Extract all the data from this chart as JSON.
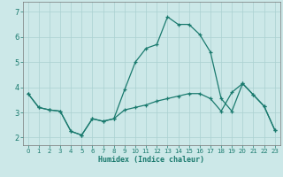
{
  "xlabel": "Humidex (Indice chaleur)",
  "xlim": [
    -0.5,
    23.5
  ],
  "ylim": [
    1.7,
    7.4
  ],
  "xticks": [
    0,
    1,
    2,
    3,
    4,
    5,
    6,
    7,
    8,
    9,
    10,
    11,
    12,
    13,
    14,
    15,
    16,
    17,
    18,
    19,
    20,
    21,
    22,
    23
  ],
  "yticks": [
    2,
    3,
    4,
    5,
    6,
    7
  ],
  "bg_color": "#cce8e8",
  "line_color": "#1a7a6e",
  "upper_x": [
    0,
    1,
    2,
    3,
    4,
    5,
    6,
    7,
    8,
    9,
    10,
    11,
    12,
    13,
    14,
    15,
    16,
    17,
    18,
    19,
    20,
    21,
    22,
    23
  ],
  "upper_y": [
    3.75,
    3.2,
    3.1,
    3.05,
    2.25,
    2.1,
    2.75,
    2.65,
    2.75,
    3.9,
    5.0,
    5.55,
    5.7,
    6.8,
    6.5,
    6.5,
    6.1,
    5.4,
    3.55,
    3.05,
    4.15,
    3.7,
    3.25,
    2.3
  ],
  "lower_x": [
    0,
    1,
    2,
    3,
    4,
    5,
    6,
    7,
    8,
    9,
    10,
    11,
    12,
    13,
    14,
    15,
    16,
    17,
    18,
    19,
    20,
    21,
    22,
    23
  ],
  "lower_y": [
    3.75,
    3.2,
    3.1,
    3.05,
    2.25,
    2.1,
    2.75,
    2.65,
    2.75,
    3.1,
    3.2,
    3.3,
    3.45,
    3.55,
    3.65,
    3.75,
    3.75,
    3.55,
    3.05,
    3.8,
    4.15,
    3.7,
    3.25,
    2.3
  ],
  "grid_color": "#aad0d0",
  "xlabel_fontsize": 6,
  "tick_fontsize": 5
}
